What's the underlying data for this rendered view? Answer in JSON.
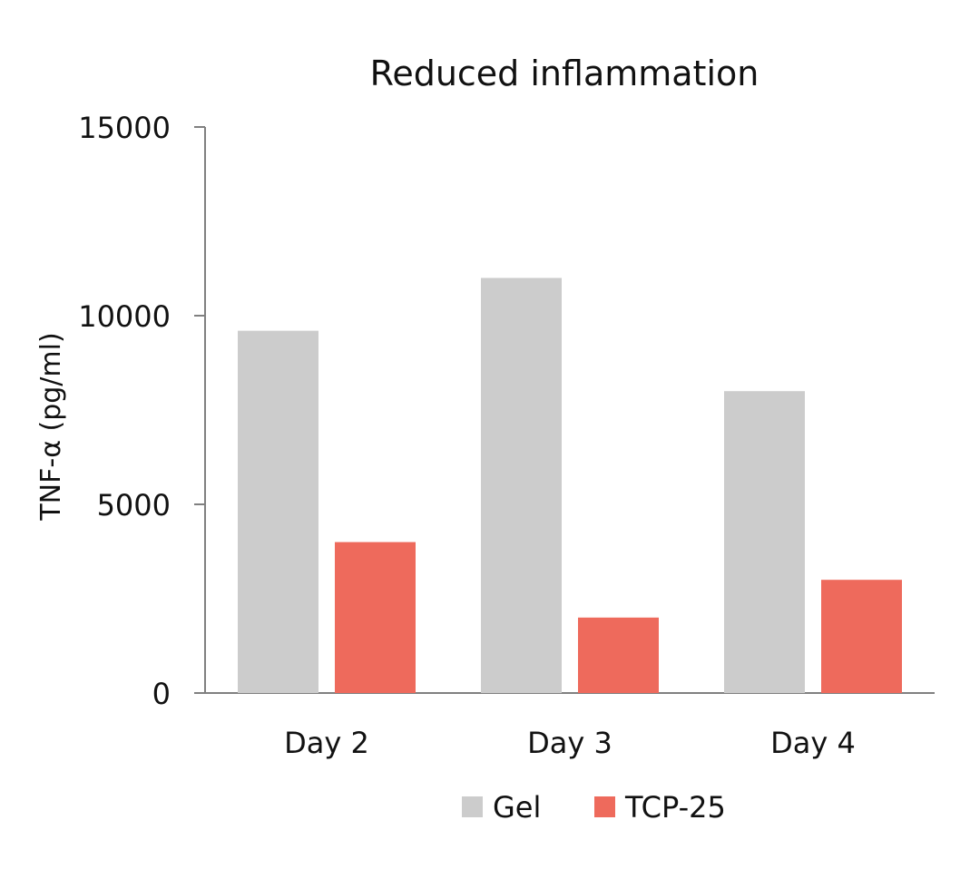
{
  "chart_data": {
    "type": "bar",
    "title": "Reduced inflammation",
    "xlabel": "",
    "ylabel": "TNF-α (pg/ml)",
    "categories": [
      "Day 2",
      "Day 3",
      "Day 4"
    ],
    "series": [
      {
        "name": "Gel",
        "color": "#cccccc",
        "values": [
          9600,
          11000,
          8000
        ]
      },
      {
        "name": "TCP-25",
        "color": "#ee6a5c",
        "values": [
          4000,
          2000,
          3000
        ]
      }
    ],
    "ylim": [
      0,
      15000
    ],
    "yticks": [
      "0",
      "5000",
      "10000",
      "15000"
    ],
    "yticks_values": [
      0,
      5000,
      10000,
      15000
    ],
    "grid": false,
    "legend_position": "bottom"
  }
}
